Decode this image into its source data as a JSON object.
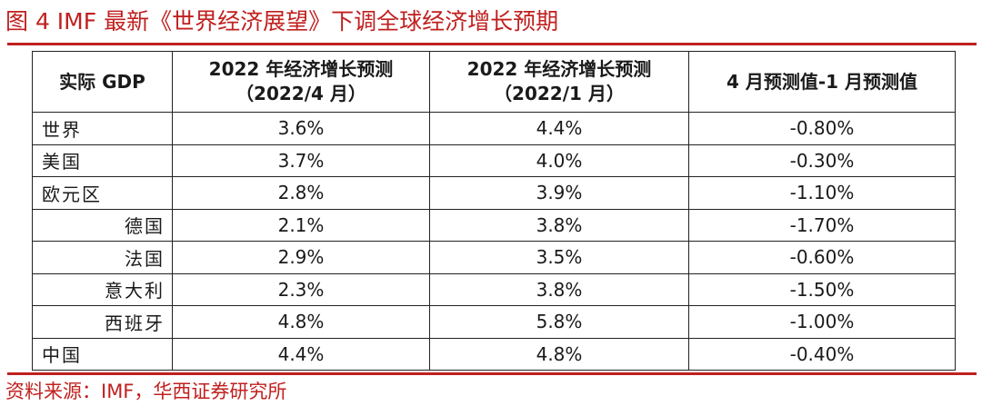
{
  "title": "图 4 IMF 最新《世界经济展望》下调全球经济增长预期",
  "source": "资料来源：IMF，华西证券研究所",
  "table": {
    "headers": [
      {
        "line1": "实际 GDP",
        "line2": ""
      },
      {
        "line1": "2022 年经济增长预测",
        "line2": "（2022/4 月）"
      },
      {
        "line1": "2022 年经济增长预测",
        "line2": "（2022/1 月）"
      },
      {
        "line1": "4 月预测值-1 月预测值",
        "line2": ""
      }
    ],
    "rows": [
      {
        "name": "世界",
        "apr": "3.6%",
        "jan": "4.4%",
        "diff": "-0.80%"
      },
      {
        "name": "美国",
        "apr": "3.7%",
        "jan": "4.0%",
        "diff": "-0.30%"
      },
      {
        "name": "欧元区",
        "apr": "2.8%",
        "jan": "3.9%",
        "diff": "-1.10%"
      },
      {
        "name": "德国",
        "apr": "2.1%",
        "jan": "3.8%",
        "diff": "-1.70%"
      },
      {
        "name": "法国",
        "apr": "2.9%",
        "jan": "3.5%",
        "diff": "-0.60%"
      },
      {
        "name": "意大利",
        "apr": "2.3%",
        "jan": "3.8%",
        "diff": "-1.50%"
      },
      {
        "name": "西班牙",
        "apr": "4.8%",
        "jan": "5.8%",
        "diff": "-1.00%"
      },
      {
        "name": "中国",
        "apr": "4.4%",
        "jan": "4.8%",
        "diff": "-0.40%"
      }
    ]
  },
  "colors": {
    "accent": "#c0201f",
    "border": "#222222"
  }
}
